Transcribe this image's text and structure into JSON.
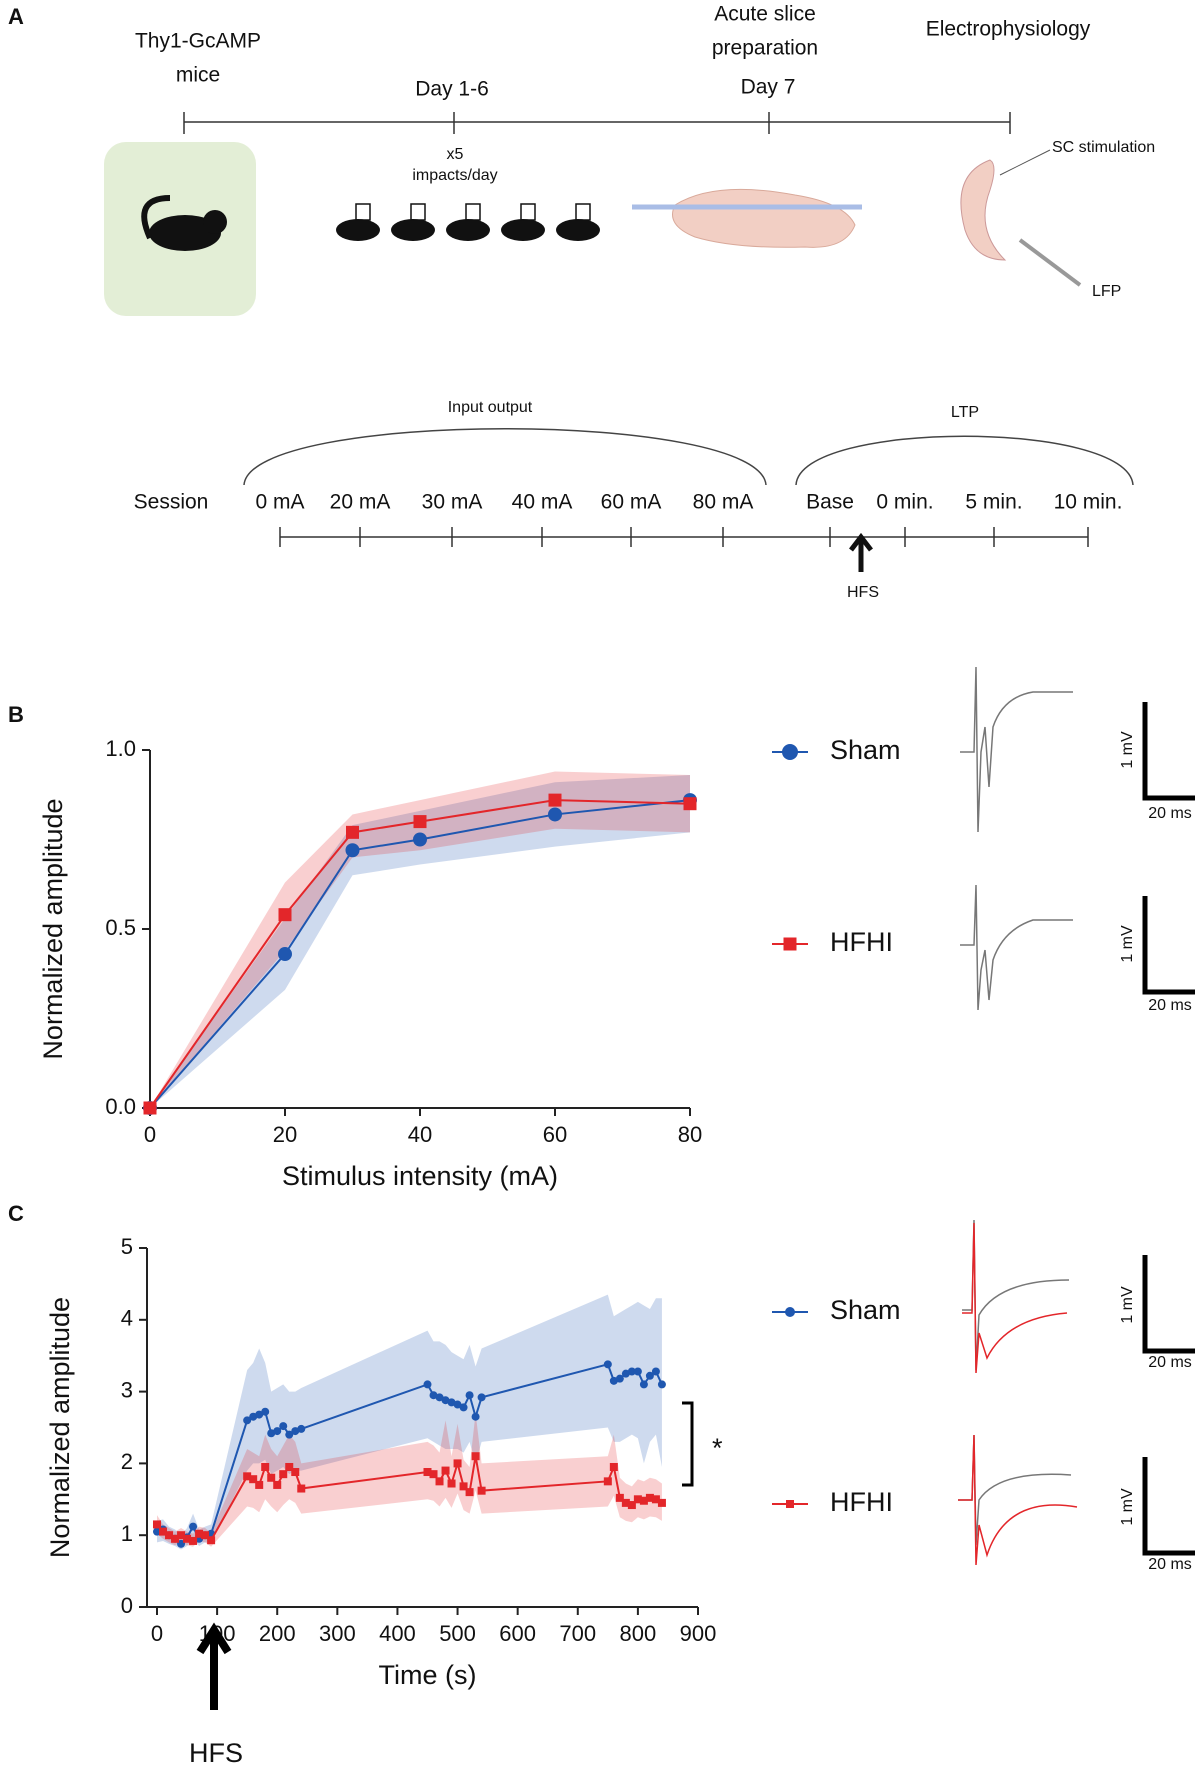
{
  "panel_labels": [
    "A",
    "B",
    "C"
  ],
  "panel_a": {
    "timeline": {
      "start": [
        "Thy1-GcAMP",
        "mice"
      ],
      "day1": "Day 1-6",
      "impacts": [
        "x5",
        "impacts/day"
      ],
      "slice": [
        "Acute slice",
        "preparation"
      ],
      "day7": "Day 7",
      "ephys": "Electrophysiology",
      "sc": "SC stimulation",
      "lfp": "LFP"
    },
    "session": {
      "label": "Session",
      "input_output": "Input output",
      "ltp": "LTP",
      "steps": [
        "0 mA",
        "20 mA",
        "30 mA",
        "40 mA",
        "60 mA",
        "80 mA",
        "Base",
        "0 min.",
        "5 min.",
        "10 min."
      ],
      "hfs": "HFS"
    }
  },
  "chart_data": [
    {
      "type": "line",
      "xlabel": "Stimulus intensity (mA)",
      "ylabel": "Normalized amplitude",
      "x": [
        0,
        20,
        30,
        40,
        60,
        80
      ],
      "xlim": [
        0,
        80
      ],
      "xticks": [
        0,
        20,
        40,
        60,
        80
      ],
      "ylim": [
        0,
        1
      ],
      "yticks": [
        {
          "value": 0,
          "label": "0.0"
        },
        {
          "value": 0.5,
          "label": "0.5"
        },
        {
          "value": 1,
          "label": "1.0"
        }
      ],
      "scale_bar_labels": [
        "1 mV",
        "20 ms"
      ],
      "series": [
        {
          "name": "Sham",
          "color": "#1f57b0",
          "values": [
            0,
            0.43,
            0.72,
            0.75,
            0.82,
            0.86
          ],
          "lower": [
            0,
            0.33,
            0.65,
            0.68,
            0.73,
            0.77
          ],
          "upper": [
            0,
            0.53,
            0.79,
            0.83,
            0.91,
            0.93
          ]
        },
        {
          "name": "HFHI",
          "color": "#e3262a",
          "values": [
            0,
            0.54,
            0.77,
            0.8,
            0.86,
            0.85
          ],
          "lower": [
            0,
            0.44,
            0.7,
            0.72,
            0.78,
            0.77
          ],
          "upper": [
            0,
            0.63,
            0.82,
            0.86,
            0.94,
            0.93
          ]
        }
      ]
    },
    {
      "type": "line",
      "xlabel": "Time (s)",
      "ylabel": "Normalized amplitude",
      "marker": "HFS",
      "significance": "*",
      "x": [
        0,
        10,
        20,
        30,
        40,
        50,
        60,
        70,
        80,
        90,
        150,
        160,
        170,
        180,
        190,
        200,
        210,
        220,
        230,
        240,
        450,
        460,
        470,
        480,
        490,
        500,
        510,
        520,
        530,
        540,
        750,
        760,
        770,
        780,
        790,
        800,
        810,
        820,
        830,
        840
      ],
      "xlim": [
        0,
        900
      ],
      "xticks": [
        0,
        100,
        200,
        300,
        400,
        500,
        600,
        700,
        800,
        900
      ],
      "ylim": [
        0,
        5
      ],
      "yticks": [
        0,
        1,
        2,
        3,
        4,
        5
      ],
      "scale_bar_labels": [
        "1 mV",
        "20 ms"
      ],
      "series": [
        {
          "name": "Sham",
          "color": "#1f57b0",
          "values": [
            1.05,
            1.08,
            1.0,
            0.95,
            0.88,
            0.97,
            1.12,
            0.95,
            1.0,
            1.02,
            2.6,
            2.65,
            2.68,
            2.72,
            2.42,
            2.45,
            2.52,
            2.4,
            2.45,
            2.48,
            3.1,
            2.95,
            2.92,
            2.88,
            2.85,
            2.82,
            2.78,
            2.95,
            2.65,
            2.92,
            3.38,
            3.15,
            3.18,
            3.25,
            3.28,
            3.28,
            3.1,
            3.22,
            3.28,
            3.1
          ],
          "lower": [
            0.9,
            0.92,
            0.88,
            0.85,
            0.8,
            0.85,
            0.95,
            0.85,
            0.9,
            0.9,
            1.9,
            2.0,
            2.0,
            2.05,
            1.85,
            1.9,
            1.95,
            1.85,
            1.9,
            1.9,
            2.35,
            2.3,
            2.25,
            2.2,
            2.2,
            2.2,
            2.15,
            2.3,
            2.0,
            2.3,
            2.5,
            2.3,
            2.3,
            2.35,
            2.4,
            2.35,
            2.0,
            2.3,
            2.4,
            1.95
          ],
          "upper": [
            1.2,
            1.22,
            1.12,
            1.08,
            1.0,
            1.1,
            1.3,
            1.08,
            1.12,
            1.15,
            3.3,
            3.4,
            3.6,
            3.4,
            3.0,
            3.05,
            3.1,
            3.0,
            3.0,
            3.05,
            3.85,
            3.7,
            3.7,
            3.65,
            3.55,
            3.5,
            3.45,
            3.65,
            3.35,
            3.6,
            4.35,
            4.05,
            4.1,
            4.15,
            4.2,
            4.25,
            4.2,
            4.15,
            4.3,
            4.3
          ]
        },
        {
          "name": "HFHI",
          "color": "#e3262a",
          "values": [
            1.15,
            1.05,
            1.0,
            0.95,
            1.0,
            0.95,
            0.92,
            1.02,
            1.0,
            0.93,
            1.82,
            1.78,
            1.7,
            1.95,
            1.8,
            1.7,
            1.85,
            1.95,
            1.88,
            1.65,
            1.88,
            1.85,
            1.75,
            1.9,
            1.72,
            2.0,
            1.68,
            1.6,
            2.1,
            1.62,
            1.75,
            1.95,
            1.52,
            1.45,
            1.42,
            1.5,
            1.48,
            1.52,
            1.5,
            1.45
          ],
          "lower": [
            1.02,
            0.95,
            0.9,
            0.86,
            0.9,
            0.86,
            0.84,
            0.92,
            0.9,
            0.84,
            1.4,
            1.38,
            1.32,
            1.5,
            1.4,
            1.32,
            1.42,
            1.5,
            1.45,
            1.3,
            1.5,
            1.48,
            1.4,
            1.52,
            1.38,
            1.58,
            1.35,
            1.3,
            1.62,
            1.3,
            1.4,
            1.55,
            1.25,
            1.2,
            1.18,
            1.25,
            1.22,
            1.26,
            1.25,
            1.2
          ],
          "upper": [
            1.28,
            1.15,
            1.1,
            1.05,
            1.1,
            1.05,
            1.02,
            1.12,
            1.1,
            1.03,
            2.2,
            2.15,
            2.1,
            2.4,
            2.2,
            2.1,
            2.25,
            2.4,
            2.3,
            2.0,
            2.3,
            2.25,
            2.15,
            2.6,
            2.1,
            2.55,
            2.05,
            1.95,
            2.7,
            2.0,
            2.1,
            2.4,
            1.8,
            1.72,
            1.68,
            1.78,
            1.75,
            1.8,
            1.78,
            1.72
          ]
        }
      ]
    }
  ]
}
